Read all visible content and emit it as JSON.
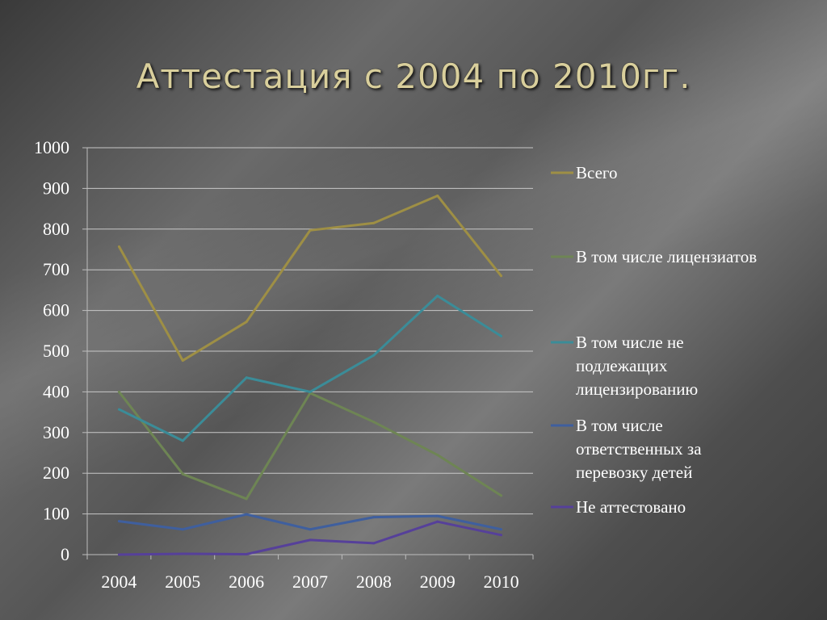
{
  "title": "Аттестация с 2004 по 2010гг.",
  "chart_data": {
    "type": "line",
    "title": "",
    "xlabel": "",
    "ylabel": "",
    "categories": [
      "2004",
      "2005",
      "2006",
      "2007",
      "2008",
      "2009",
      "2010"
    ],
    "ylim": [
      0,
      1000
    ],
    "yticks": [
      "0",
      "100",
      "200",
      "300",
      "400",
      "500",
      "600",
      "700",
      "800",
      "900",
      "1000"
    ],
    "grid": true,
    "legend_position": "right",
    "series": [
      {
        "name": "Всего",
        "color": "#9e8f45",
        "values": [
          757,
          477,
          572,
          797,
          815,
          882,
          685
        ]
      },
      {
        "name": "В том числе лицензиатов",
        "color": "#6e8554",
        "values": [
          400,
          198,
          137,
          397,
          326,
          245,
          145
        ]
      },
      {
        "name": "В том числе не подлежащих лицензированию",
        "color": "#3b8c98",
        "values": [
          357,
          280,
          435,
          400,
          490,
          636,
          537
        ]
      },
      {
        "name": "В том числе ответственных за перевозку детей",
        "color": "#3f5f9e",
        "values": [
          82,
          62,
          99,
          62,
          92,
          95,
          62
        ]
      },
      {
        "name": "Не аттестовано",
        "color": "#56409a",
        "values": [
          0,
          2,
          1,
          36,
          28,
          81,
          48
        ]
      }
    ]
  }
}
